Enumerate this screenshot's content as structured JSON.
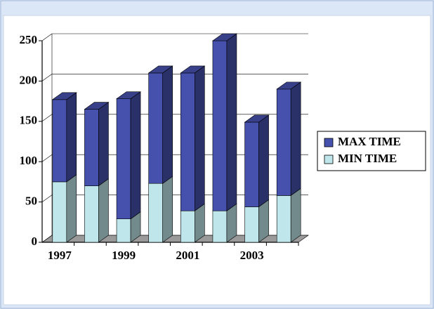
{
  "chart_data": {
    "type": "bar",
    "stacked": true,
    "categories": [
      "1997",
      null,
      "1999",
      null,
      "2001",
      null,
      "2003",
      null
    ],
    "series": [
      {
        "name": "MIN TIME",
        "color": "#bfe6ea",
        "values": [
          75,
          70,
          29,
          73,
          39,
          39,
          44,
          58
        ]
      },
      {
        "name": "MAX TIME",
        "color": "#4650ad",
        "values": [
          102,
          95,
          149,
          137,
          171,
          211,
          105,
          132
        ]
      }
    ],
    "ylim": [
      0,
      250
    ],
    "yticks": [
      0,
      50,
      100,
      150,
      200,
      250
    ],
    "grid": true,
    "legend": "right"
  }
}
